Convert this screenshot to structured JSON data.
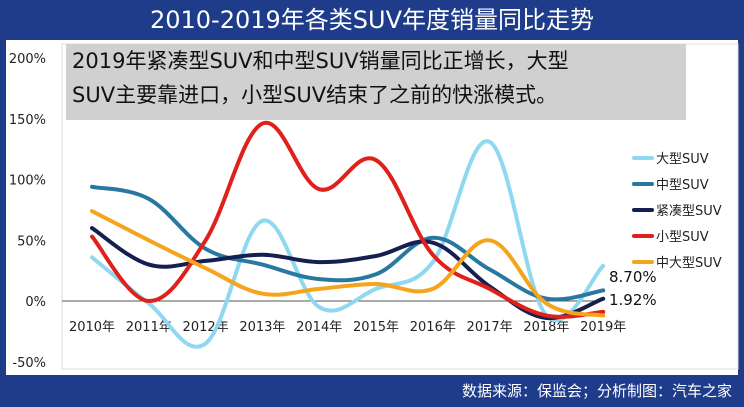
{
  "header": {
    "title": "2010-2019年各类SUV年度销量同比走势"
  },
  "annotation": {
    "line1": "2019年紧凑型SUV和中型SUV销量同比正增长，大型",
    "line2": "SUV主要靠进口，小型SUV结束了之前的快涨模式。"
  },
  "footer": {
    "source": "数据来源：保监会；分析制图：汽车之家"
  },
  "chart_data": {
    "type": "line",
    "title": "2010-2019年各类SUV年度销量同比走势",
    "categories": [
      "2010年",
      "2011年",
      "2012年",
      "2013年",
      "2014年",
      "2015年",
      "2016年",
      "2017年",
      "2018年",
      "2019年"
    ],
    "y_ticks": [
      "200%",
      "150%",
      "100%",
      "50%",
      "0%",
      "-50%"
    ],
    "y_tick_values": [
      200,
      150,
      100,
      50,
      0,
      -50
    ],
    "ylim": [
      -50,
      200
    ],
    "series": [
      {
        "name": "大型SUV",
        "color": "#8fd8f0",
        "values": [
          36,
          -2,
          -35,
          66,
          -5,
          10,
          32,
          131,
          -12,
          29
        ]
      },
      {
        "name": "中型SUV",
        "color": "#2878a0",
        "values": [
          94,
          84,
          43,
          30,
          18,
          22,
          52,
          26,
          2,
          8.7
        ]
      },
      {
        "name": "紧凑型SUV",
        "color": "#142050",
        "values": [
          60,
          30,
          33,
          38,
          32,
          37,
          48,
          12,
          -14,
          1.92
        ]
      },
      {
        "name": "小型SUV",
        "color": "#e0201a",
        "values": [
          53,
          0,
          50,
          146,
          92,
          116,
          38,
          10,
          -12,
          -9
        ]
      },
      {
        "name": "中大型SUV",
        "color": "#f5a41e",
        "values": [
          74,
          50,
          27,
          6,
          10,
          14,
          10,
          50,
          -2,
          -12
        ]
      }
    ],
    "data_labels": [
      {
        "series": "中型SUV",
        "text": "8.70%"
      },
      {
        "series": "紧凑型SUV",
        "text": "1.92%"
      }
    ],
    "legend_position": "right",
    "grid": false
  }
}
